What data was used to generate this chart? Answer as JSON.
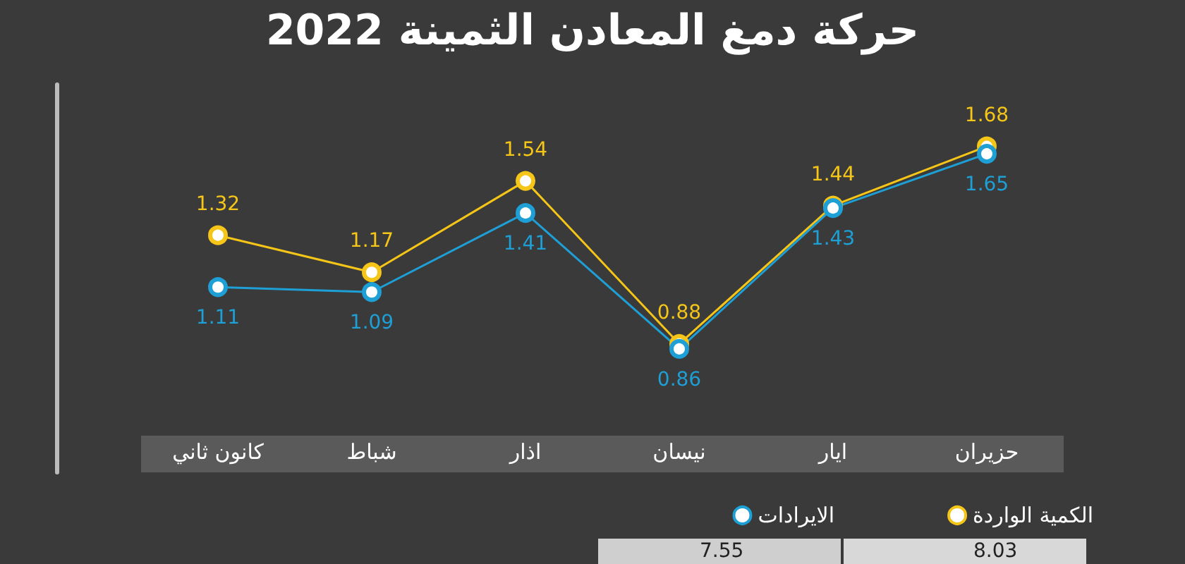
{
  "chart_data": {
    "type": "line",
    "title": "حركة دمغ المعادن الثمينة 2022",
    "categories": [
      "كانون ثاني",
      "شباط",
      "اذار",
      "نيسان",
      "ايار",
      "حزيران"
    ],
    "series": [
      {
        "name": "الكمية الواردة",
        "color": "#f5c518",
        "values": [
          1.32,
          1.17,
          1.54,
          0.88,
          1.44,
          1.68
        ]
      },
      {
        "name": "الايرادات",
        "color": "#1e9fd6",
        "values": [
          1.11,
          1.09,
          1.41,
          0.86,
          1.43,
          1.65
        ]
      }
    ],
    "data_labels": true,
    "marker": "circle",
    "grid": false,
    "legend": "bottom right",
    "tick_labels": "x",
    "annotations": [
      "8.03",
      "7.55"
    ]
  }
}
